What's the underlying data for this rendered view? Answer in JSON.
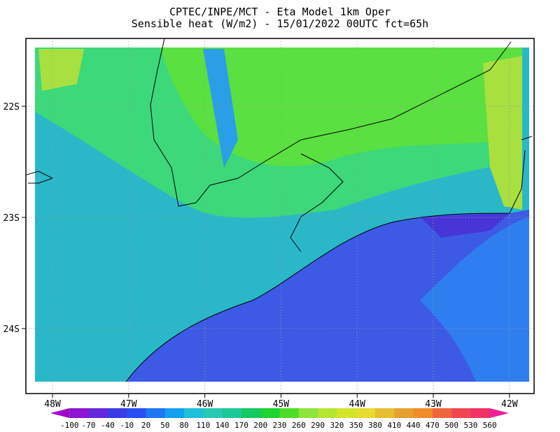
{
  "header": {
    "title": "CPTEC/INPE/MCT -  Eta Model 1km Oper",
    "subtitle": "Sensible heat (W/m2) - 15/01/2022 00UTC fct=65h"
  },
  "map": {
    "lat_labels": [
      "22S",
      "23S",
      "24S"
    ],
    "lon_labels": [
      "48W",
      "47W",
      "46W",
      "45W",
      "44W",
      "43W",
      "42W"
    ]
  },
  "colorbar": {
    "labels": [
      -100,
      -70,
      -40,
      -10,
      20,
      50,
      80,
      110,
      140,
      170,
      200,
      230,
      260,
      290,
      320,
      350,
      380,
      410,
      440,
      470,
      500,
      530,
      560
    ],
    "colors": [
      "#a000c8",
      "#8c14d2",
      "#6428dc",
      "#3c3ce6",
      "#2850f0",
      "#1e78f0",
      "#14a0f0",
      "#1ebedc",
      "#28c8b4",
      "#1ec896",
      "#14c864",
      "#1ed232",
      "#50dc28",
      "#8ce63c",
      "#b4e632",
      "#d2e628",
      "#e6dc32",
      "#e6be32",
      "#e6a032",
      "#f08c28",
      "#f0643c",
      "#f04650",
      "#f03264",
      "#f01e96"
    ]
  }
}
